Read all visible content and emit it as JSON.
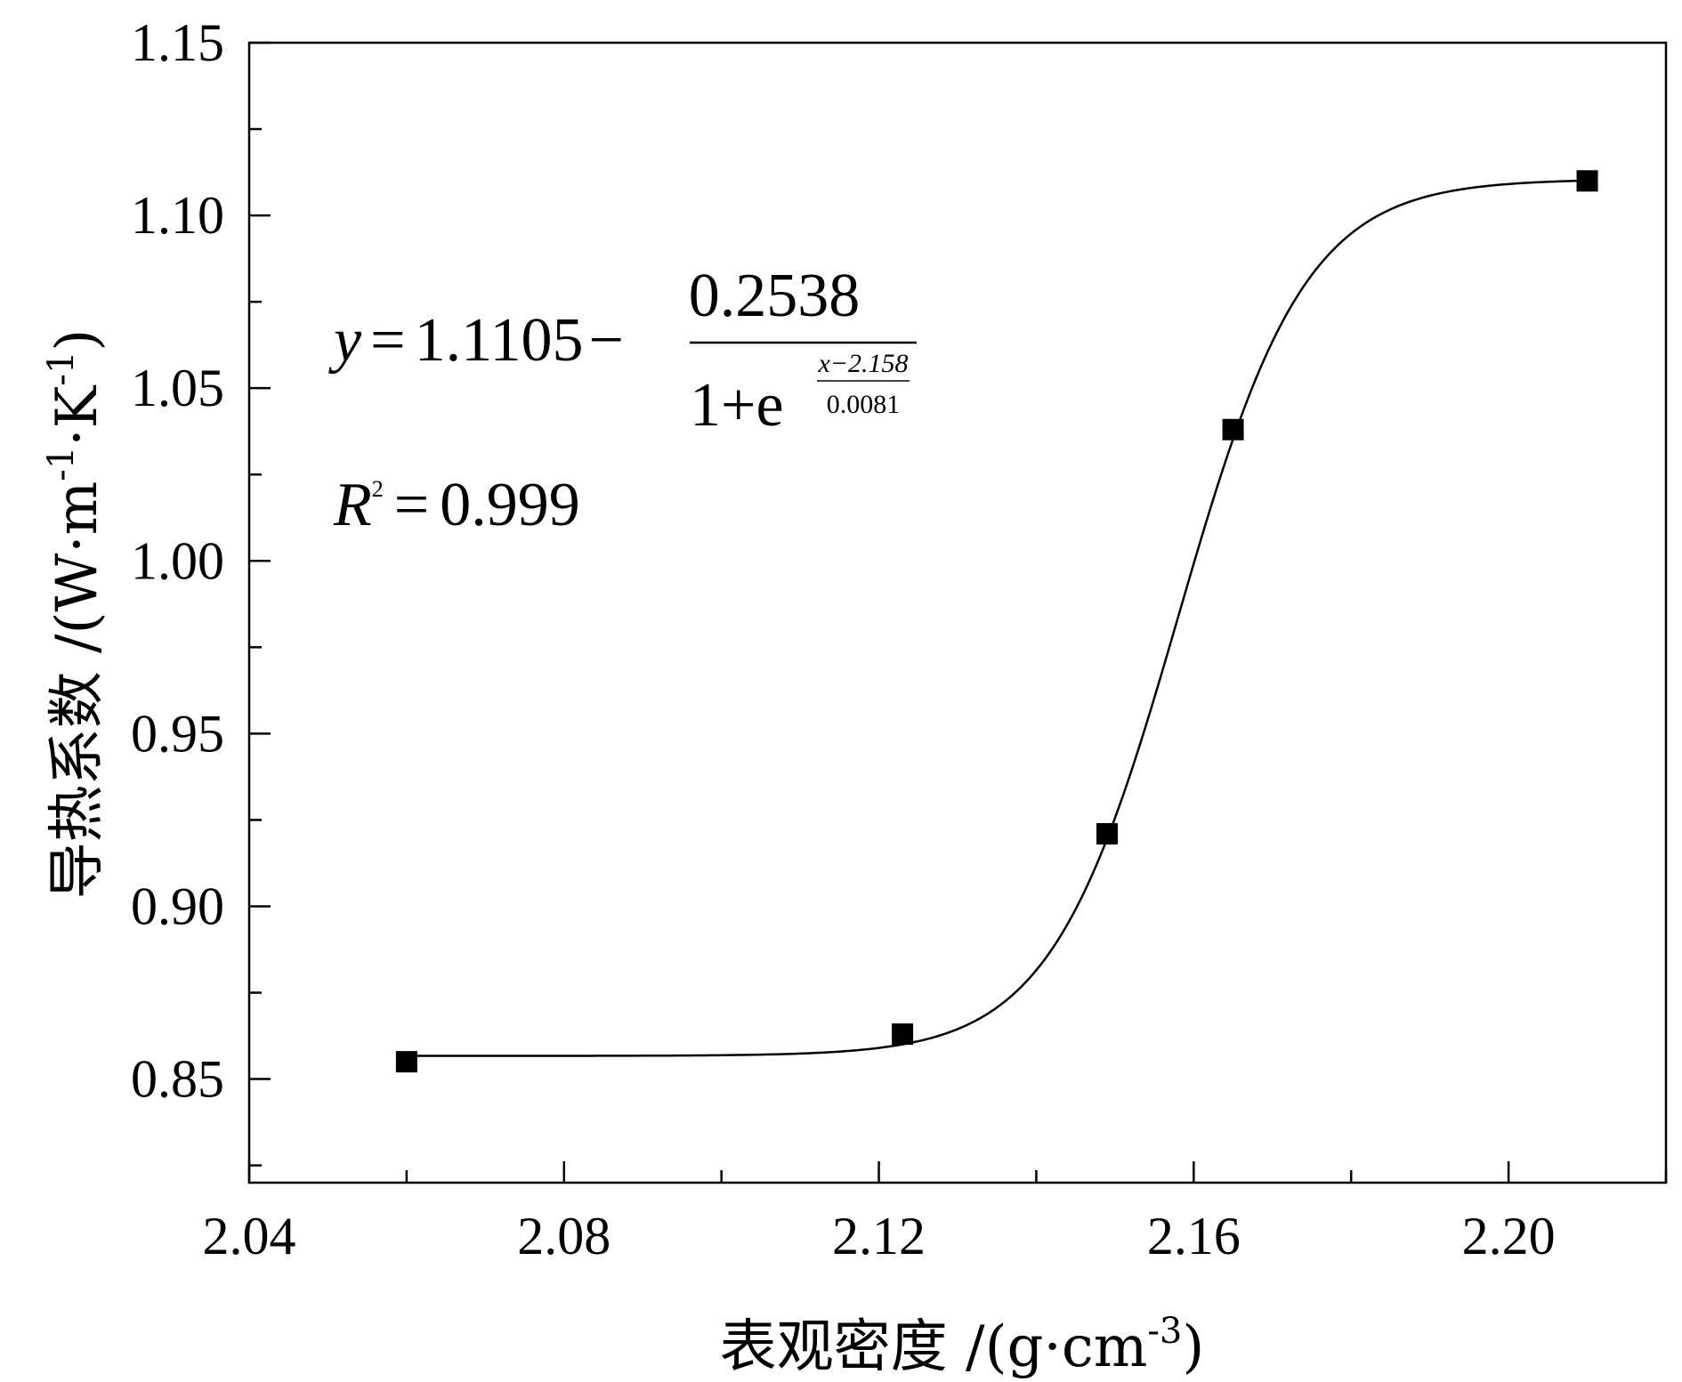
{
  "chart_data": {
    "type": "scatter",
    "xlabel": "表观密度 /(g·cm-3)",
    "ylabel": "导热系数 /(W·m-1·K-1)",
    "xlabel_parts": {
      "text": "表观密度  /(g·cm",
      "sup": "-3",
      "close": ")"
    },
    "ylabel_parts": {
      "text": "导热系数 /(W·m",
      "sup1": "-1",
      "mid": "·K",
      "sup2": "-1",
      "close": ")"
    },
    "xlim": [
      2.04,
      2.22
    ],
    "ylim": [
      0.82,
      1.15
    ],
    "xticks": [
      2.04,
      2.08,
      2.12,
      2.16,
      2.2
    ],
    "xtick_labels": [
      "2.04",
      "2.08",
      "2.12",
      "2.16",
      "2.20"
    ],
    "yticks": [
      0.85,
      0.9,
      0.95,
      1.0,
      1.05,
      1.1,
      1.15
    ],
    "ytick_labels": [
      "0.85",
      "0.90",
      "0.95",
      "1.00",
      "1.05",
      "1.10",
      "1.15"
    ],
    "grid": false,
    "series": [
      {
        "marker": "square",
        "color": "#000000",
        "x": [
          2.06,
          2.123,
          2.149,
          2.165,
          2.21
        ],
        "y": [
          0.855,
          0.863,
          0.921,
          1.038,
          1.11
        ]
      }
    ],
    "fit": {
      "type": "sigmoid",
      "A2": 1.1105,
      "amplitude": 0.2538,
      "x0": 2.158,
      "dx": 0.0081,
      "x_range": [
        2.06,
        2.21
      ],
      "color": "#000000"
    },
    "equation": {
      "y": "y",
      "eq": "=",
      "a": "1.1105",
      "minus": "−",
      "numerator": "0.2538",
      "denominator_base": "1+e",
      "exp_numerator": "x−2.158",
      "exp_denominator": "0.0081"
    },
    "r_squared": {
      "r": "R",
      "sup": "2",
      "eq": "=",
      "value": "0.999"
    }
  }
}
